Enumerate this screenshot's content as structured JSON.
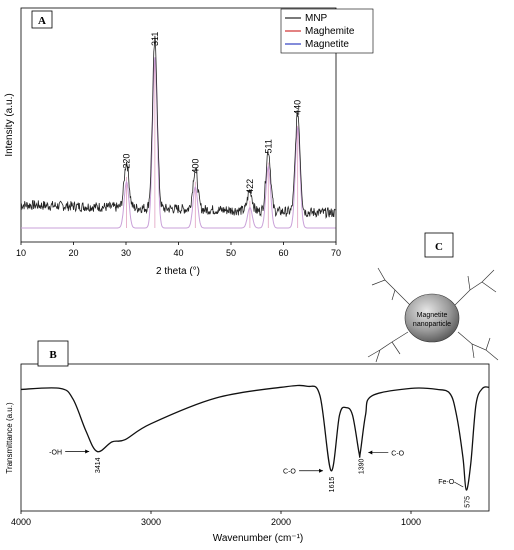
{
  "panels": {
    "a": "A",
    "b": "B",
    "c": "C"
  },
  "chart_data": [
    {
      "type": "line",
      "panel": "A",
      "xlabel": "2 theta (°)",
      "ylabel": "Intensity (a.u.)",
      "xlim": [
        10,
        70
      ],
      "xticks": [
        10,
        20,
        30,
        40,
        50,
        60,
        70
      ],
      "legend": [
        "MNP",
        "Maghemite",
        "Magnetite"
      ],
      "legend_placement": "top-right",
      "colors": {
        "MNP": "#222222",
        "Maghemite": "#d03030",
        "Magnetite": "#3040c0"
      },
      "peaks": [
        {
          "x": 30.1,
          "h": 0.27,
          "label": "220"
        },
        {
          "x": 35.5,
          "h": 1.0,
          "label": "311"
        },
        {
          "x": 43.2,
          "h": 0.24,
          "label": "400"
        },
        {
          "x": 53.6,
          "h": 0.12,
          "label": "422"
        },
        {
          "x": 57.1,
          "h": 0.36,
          "label": "511"
        },
        {
          "x": 62.7,
          "h": 0.59,
          "label": "440"
        }
      ]
    },
    {
      "type": "line",
      "panel": "B",
      "xlabel": "Wavenumber (cm⁻¹)",
      "ylabel": "Transmittance (a.u.)",
      "xlim": [
        4000,
        400
      ],
      "xticks": [
        4000,
        3000,
        2000,
        1000
      ],
      "x": [
        4000,
        3700,
        3600,
        3500,
        3414,
        3300,
        3200,
        3000,
        2500,
        2000,
        1800,
        1700,
        1615,
        1550,
        1500,
        1450,
        1400,
        1390,
        1350,
        1300,
        1000,
        800,
        700,
        650,
        600,
        575,
        540,
        500,
        450,
        400
      ],
      "y": [
        0.94,
        0.95,
        0.85,
        0.55,
        0.36,
        0.45,
        0.47,
        0.62,
        0.86,
        0.96,
        0.97,
        0.88,
        0.18,
        0.7,
        0.77,
        0.7,
        0.35,
        0.35,
        0.7,
        0.88,
        0.95,
        0.94,
        0.9,
        0.7,
        0.3,
        0.0,
        0.25,
        0.8,
        0.95,
        0.96
      ],
      "annotations": [
        {
          "text": "-OH",
          "wn": 3414,
          "value": "3414"
        },
        {
          "text": "C-O",
          "wn": 1615,
          "value": "1615"
        },
        {
          "text": "C-O",
          "wn": 1390,
          "value": "1390"
        },
        {
          "text": "Fe-O",
          "wn": 575,
          "value": "575"
        }
      ]
    }
  ],
  "diagram": {
    "core_label_1": "Magnetite",
    "core_label_2": "nanoparticle"
  }
}
